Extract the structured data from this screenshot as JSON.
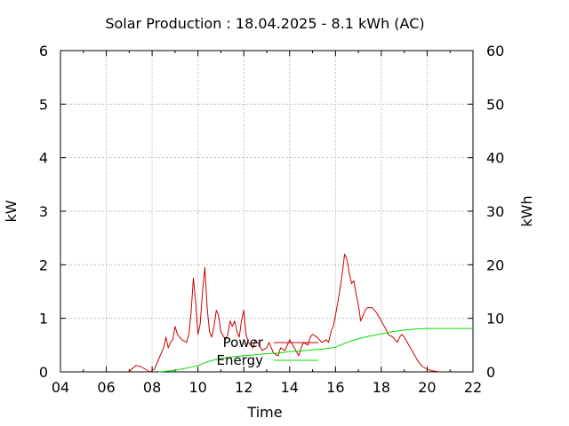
{
  "chart_data": {
    "type": "line",
    "title": "Solar Production : 18.04.2025 - 8.1 kWh (AC)",
    "xlabel": "Time",
    "ylabel": "kW",
    "y2label": "kWh",
    "xlim": [
      4,
      22
    ],
    "ylim": [
      0,
      6
    ],
    "y2lim": [
      0,
      60
    ],
    "xticks": [
      "04",
      "06",
      "08",
      "10",
      "12",
      "14",
      "16",
      "18",
      "20",
      "22"
    ],
    "yticks": [
      "0",
      "1",
      "2",
      "3",
      "4",
      "5",
      "6"
    ],
    "y2ticks": [
      "0",
      "10",
      "20",
      "30",
      "40",
      "50",
      "60"
    ],
    "grid": true,
    "legend": "center",
    "series": [
      {
        "name": "Power",
        "axis": "left",
        "color": "#cc0000",
        "points": [
          [
            7.0,
            0.0
          ],
          [
            7.1,
            0.05
          ],
          [
            7.3,
            0.12
          ],
          [
            7.5,
            0.1
          ],
          [
            7.7,
            0.05
          ],
          [
            7.9,
            0.0
          ],
          [
            8.1,
            0.05
          ],
          [
            8.3,
            0.25
          ],
          [
            8.5,
            0.45
          ],
          [
            8.6,
            0.65
          ],
          [
            8.7,
            0.45
          ],
          [
            8.8,
            0.55
          ],
          [
            8.9,
            0.6
          ],
          [
            9.0,
            0.85
          ],
          [
            9.1,
            0.7
          ],
          [
            9.3,
            0.6
          ],
          [
            9.5,
            0.55
          ],
          [
            9.6,
            0.7
          ],
          [
            9.7,
            1.1
          ],
          [
            9.8,
            1.75
          ],
          [
            9.9,
            1.3
          ],
          [
            10.0,
            0.7
          ],
          [
            10.1,
            0.9
          ],
          [
            10.2,
            1.5
          ],
          [
            10.3,
            1.95
          ],
          [
            10.4,
            1.2
          ],
          [
            10.5,
            0.75
          ],
          [
            10.6,
            0.65
          ],
          [
            10.7,
            0.85
          ],
          [
            10.8,
            1.15
          ],
          [
            10.9,
            1.05
          ],
          [
            11.0,
            0.75
          ],
          [
            11.2,
            0.6
          ],
          [
            11.3,
            0.7
          ],
          [
            11.4,
            0.95
          ],
          [
            11.5,
            0.85
          ],
          [
            11.6,
            0.95
          ],
          [
            11.7,
            0.75
          ],
          [
            11.8,
            0.65
          ],
          [
            11.9,
            0.95
          ],
          [
            12.0,
            1.15
          ],
          [
            12.1,
            0.7
          ],
          [
            12.2,
            0.55
          ],
          [
            12.4,
            0.45
          ],
          [
            12.5,
            0.6
          ],
          [
            12.6,
            0.55
          ],
          [
            12.8,
            0.4
          ],
          [
            13.0,
            0.45
          ],
          [
            13.1,
            0.55
          ],
          [
            13.3,
            0.35
          ],
          [
            13.5,
            0.3
          ],
          [
            13.6,
            0.45
          ],
          [
            13.8,
            0.4
          ],
          [
            13.9,
            0.5
          ],
          [
            14.0,
            0.6
          ],
          [
            14.2,
            0.45
          ],
          [
            14.4,
            0.3
          ],
          [
            14.5,
            0.45
          ],
          [
            14.6,
            0.55
          ],
          [
            14.8,
            0.5
          ],
          [
            14.9,
            0.65
          ],
          [
            15.0,
            0.7
          ],
          [
            15.2,
            0.65
          ],
          [
            15.4,
            0.55
          ],
          [
            15.6,
            0.6
          ],
          [
            15.7,
            0.55
          ],
          [
            15.8,
            0.75
          ],
          [
            15.9,
            0.85
          ],
          [
            16.0,
            1.05
          ],
          [
            16.1,
            1.3
          ],
          [
            16.2,
            1.55
          ],
          [
            16.3,
            1.85
          ],
          [
            16.4,
            2.2
          ],
          [
            16.5,
            2.1
          ],
          [
            16.6,
            1.85
          ],
          [
            16.7,
            1.65
          ],
          [
            16.8,
            1.7
          ],
          [
            16.9,
            1.45
          ],
          [
            17.0,
            1.25
          ],
          [
            17.1,
            0.95
          ],
          [
            17.2,
            1.05
          ],
          [
            17.3,
            1.15
          ],
          [
            17.4,
            1.2
          ],
          [
            17.6,
            1.2
          ],
          [
            17.8,
            1.1
          ],
          [
            18.0,
            0.95
          ],
          [
            18.2,
            0.8
          ],
          [
            18.3,
            0.7
          ],
          [
            18.5,
            0.65
          ],
          [
            18.7,
            0.55
          ],
          [
            18.8,
            0.65
          ],
          [
            18.9,
            0.7
          ],
          [
            19.0,
            0.65
          ],
          [
            19.2,
            0.5
          ],
          [
            19.4,
            0.35
          ],
          [
            19.6,
            0.2
          ],
          [
            19.8,
            0.1
          ],
          [
            20.0,
            0.05
          ],
          [
            20.2,
            0.02
          ],
          [
            20.4,
            0.01
          ],
          [
            20.5,
            0.0
          ]
        ]
      },
      {
        "name": "Energy",
        "axis": "right",
        "color": "#00dd00",
        "points": [
          [
            8.3,
            0.0
          ],
          [
            9.0,
            0.3
          ],
          [
            9.5,
            0.7
          ],
          [
            10.0,
            1.2
          ],
          [
            10.5,
            2.0
          ],
          [
            11.0,
            2.5
          ],
          [
            11.5,
            2.8
          ],
          [
            12.0,
            3.0
          ],
          [
            12.5,
            3.2
          ],
          [
            13.0,
            3.4
          ],
          [
            13.5,
            3.5
          ],
          [
            14.0,
            3.8
          ],
          [
            14.5,
            3.9
          ],
          [
            15.0,
            4.1
          ],
          [
            15.5,
            4.3
          ],
          [
            16.0,
            4.6
          ],
          [
            16.5,
            5.5
          ],
          [
            17.0,
            6.2
          ],
          [
            17.5,
            6.7
          ],
          [
            18.0,
            7.1
          ],
          [
            18.5,
            7.5
          ],
          [
            19.0,
            7.8
          ],
          [
            19.5,
            8.0
          ],
          [
            20.0,
            8.1
          ],
          [
            22.0,
            8.1
          ]
        ]
      }
    ]
  }
}
